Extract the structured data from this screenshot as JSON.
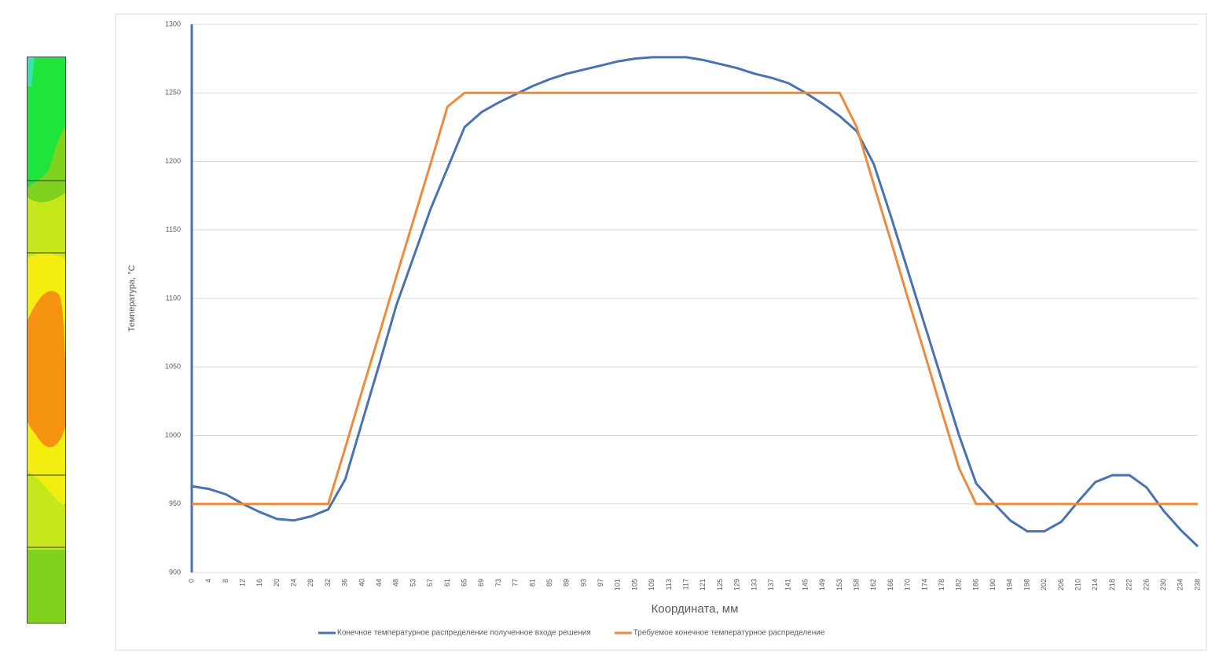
{
  "chart_data": {
    "type": "line",
    "x_label": "Координата, мм",
    "y_label": "Температура, °С",
    "categories": [
      "0",
      "4",
      "8",
      "12",
      "16",
      "20",
      "24",
      "28",
      "32",
      "36",
      "40",
      "44",
      "48",
      "53",
      "57",
      "61",
      "65",
      "69",
      "73",
      "77",
      "81",
      "85",
      "89",
      "93",
      "97",
      "101",
      "105",
      "109",
      "113",
      "117",
      "121",
      "125",
      "129",
      "133",
      "137",
      "141",
      "145",
      "149",
      "153",
      "158",
      "162",
      "166",
      "170",
      "174",
      "178",
      "182",
      "186",
      "190",
      "194",
      "198",
      "202",
      "206",
      "210",
      "214",
      "218",
      "222",
      "226",
      "230",
      "234",
      "238"
    ],
    "series": [
      {
        "name": "Конечное температурное распределение полученное  входе решения",
        "color": "#4a72b0",
        "values": [
          963,
          961,
          957,
          950,
          944,
          939,
          938,
          941,
          946,
          968,
          1010,
          1052,
          1095,
          1130,
          1165,
          1195,
          1225,
          1236,
          1243,
          1249,
          1255,
          1260,
          1264,
          1267,
          1270,
          1273,
          1275,
          1276,
          1276,
          1276,
          1274,
          1271,
          1268,
          1264,
          1261,
          1257,
          1250,
          1242,
          1233,
          1222,
          1198,
          1160,
          1120,
          1080,
          1040,
          1000,
          965,
          951,
          938,
          930,
          930,
          937,
          952,
          966,
          971,
          971,
          962,
          945,
          931,
          919
        ]
      },
      {
        "name": "Требуемое конечное температурное распределение",
        "color": "#ed8a3c",
        "values": [
          950,
          950,
          950,
          950,
          950,
          950,
          950,
          950,
          950,
          991,
          1033,
          1074,
          1116,
          1157,
          1198,
          1240,
          1250,
          1250,
          1250,
          1250,
          1250,
          1250,
          1250,
          1250,
          1250,
          1250,
          1250,
          1250,
          1250,
          1250,
          1250,
          1250,
          1250,
          1250,
          1250,
          1250,
          1250,
          1250,
          1250,
          1225,
          1183,
          1142,
          1100,
          1059,
          1017,
          976,
          950,
          950,
          950,
          950,
          950,
          950,
          950,
          950,
          950,
          950,
          950,
          950,
          950,
          950
        ]
      }
    ],
    "ylim": [
      900,
      1300
    ],
    "yticks": [
      900,
      950,
      1000,
      1050,
      1100,
      1150,
      1200,
      1250,
      1300
    ],
    "grid": true,
    "legend": "bottom"
  }
}
